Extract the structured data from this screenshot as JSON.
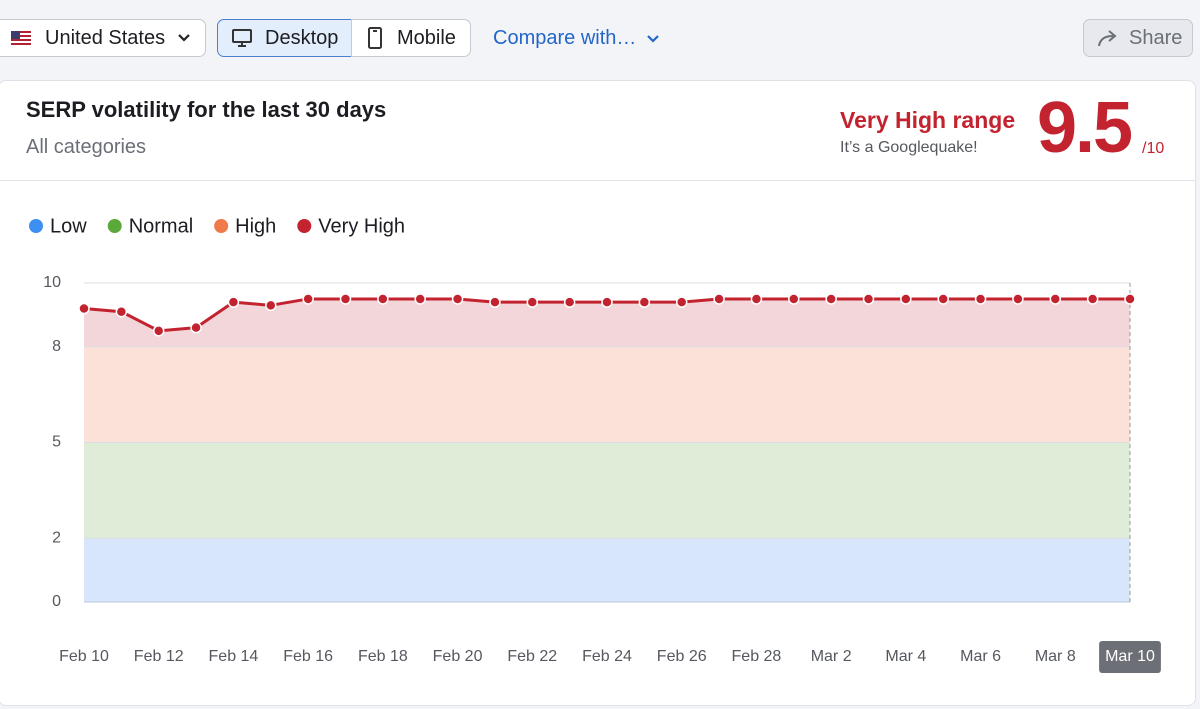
{
  "toolbar": {
    "country": "United States",
    "desktop": "Desktop",
    "mobile": "Mobile",
    "compare": "Compare with…",
    "share": "Share"
  },
  "header": {
    "title": "SERP volatility for the last 30 days",
    "subtitle": "All categories",
    "range_label": "Very High range",
    "range_note": "It’s a Googlequake!",
    "score": 9.5,
    "score_max": "/10"
  },
  "chart_data": {
    "type": "line",
    "categories": [
      "Feb 10",
      null,
      "Feb 12",
      null,
      "Feb 14",
      null,
      "Feb 16",
      null,
      "Feb 18",
      null,
      "Feb 20",
      null,
      "Feb 22",
      null,
      "Feb 24",
      null,
      "Feb 26",
      null,
      "Feb 28",
      null,
      "Mar 2",
      null,
      "Mar 4",
      null,
      "Mar 6",
      null,
      "Mar 8",
      null,
      "Mar 10"
    ],
    "series": [
      {
        "color": "#c3232f",
        "values": [
          9.2,
          9.1,
          8.5,
          8.6,
          9.4,
          9.3,
          9.5,
          9.5,
          9.5,
          9.5,
          9.5,
          9.4,
          9.4,
          9.4,
          9.4,
          9.4,
          9.4,
          9.5,
          9.5,
          9.5,
          9.5,
          9.5,
          9.5,
          9.5,
          9.5,
          9.5,
          9.5,
          9.5,
          9.5
        ]
      }
    ],
    "bands": [
      {
        "name": "Low",
        "color": "#3d8ff1",
        "fill": "#d8e6fb",
        "range": [
          0,
          2
        ]
      },
      {
        "name": "Normal",
        "color": "#5aa93a",
        "fill": "#deecd8",
        "range": [
          2,
          5
        ]
      },
      {
        "name": "High",
        "color": "#ef7a4a",
        "fill": "#fbe1d8",
        "range": [
          5,
          8
        ]
      },
      {
        "name": "Very High",
        "color": "#c3232f",
        "fill": "#f2d6d9",
        "range": [
          8,
          10
        ]
      }
    ],
    "ylim": [
      0,
      10
    ],
    "yticks": [
      0,
      2,
      5,
      8,
      10
    ],
    "grid": true,
    "legend": "top-left"
  }
}
